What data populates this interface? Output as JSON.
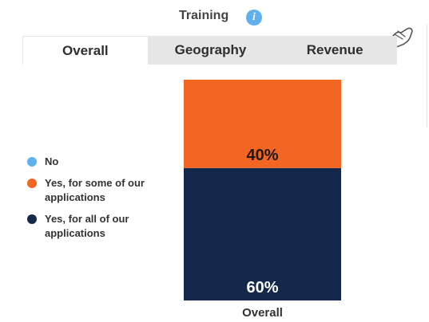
{
  "header": {
    "title": "Training"
  },
  "icons": {
    "info": "info-icon",
    "pointer": "hand-pointer-icon"
  },
  "tabs": [
    {
      "label": "Overall",
      "active": true
    },
    {
      "label": "Geography",
      "active": false
    },
    {
      "label": "Revenue",
      "active": false
    }
  ],
  "colors": {
    "no": "#5fb0ec",
    "some": "#f26522",
    "all": "#14284b",
    "tab_bg": "#e6e6e6"
  },
  "legend": [
    {
      "label": "No",
      "color": "#5fb0ec"
    },
    {
      "label": "Yes, for some of our applications",
      "color": "#f26522"
    },
    {
      "label": "Yes, for all of our applications",
      "color": "#14284b"
    }
  ],
  "chart_data": {
    "type": "bar",
    "stacked": true,
    "categories": [
      "Overall"
    ],
    "series": [
      {
        "name": "No",
        "values": [
          0
        ],
        "labels": [
          ""
        ],
        "color": "#5fb0ec"
      },
      {
        "name": "Yes, for some of our applications",
        "values": [
          40
        ],
        "labels": [
          "40%"
        ],
        "color": "#f26522"
      },
      {
        "name": "Yes, for all of our applications",
        "values": [
          60
        ],
        "labels": [
          "60%"
        ],
        "color": "#14284b"
      }
    ],
    "ylim": [
      0,
      100
    ]
  }
}
